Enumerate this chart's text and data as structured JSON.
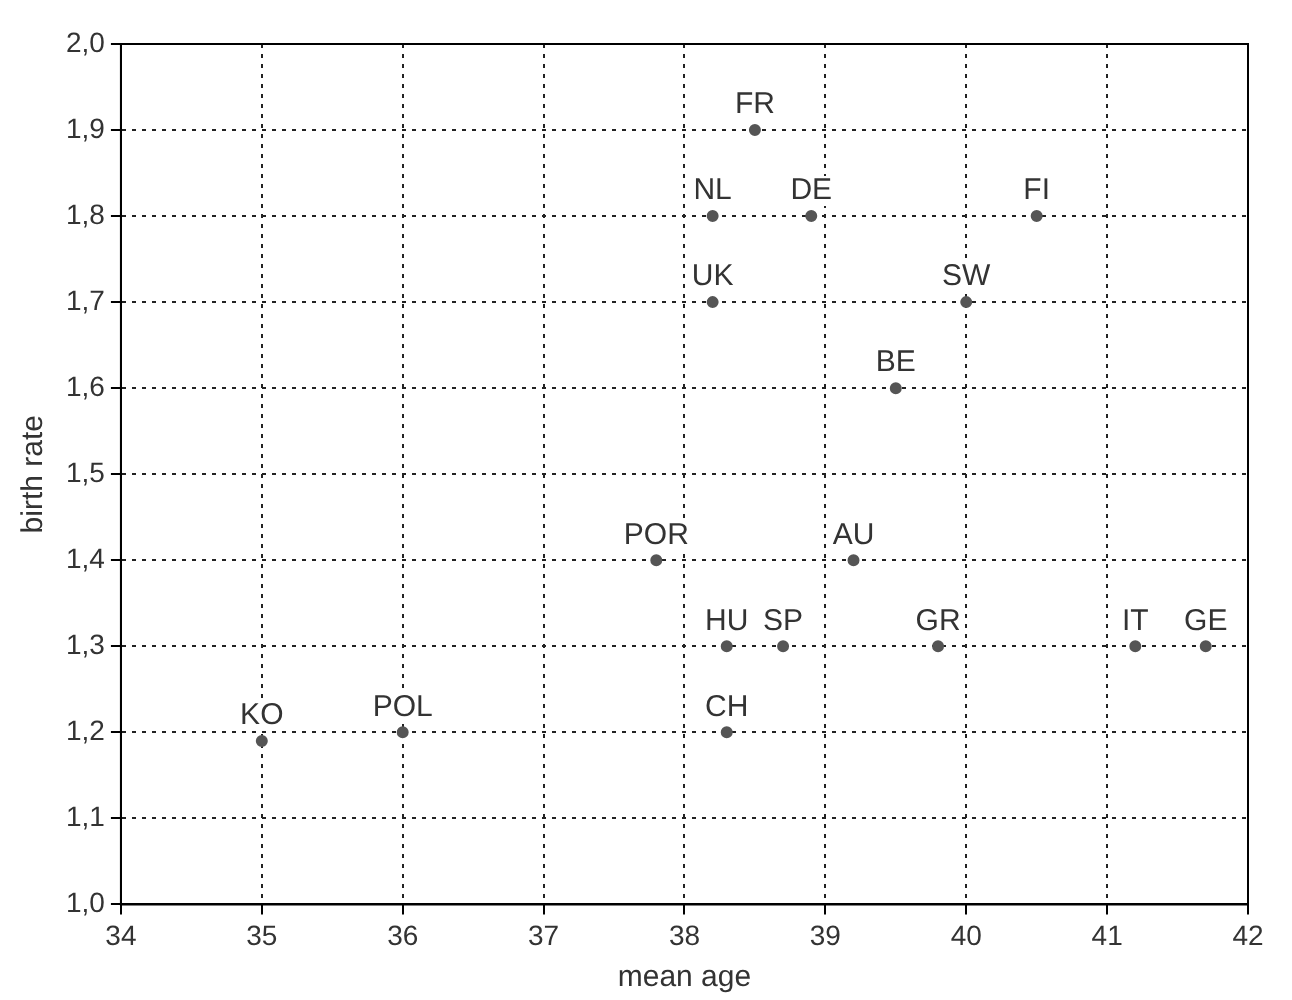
{
  "chart_data": {
    "type": "scatter",
    "xlabel": "mean age",
    "ylabel": "birth rate",
    "x": [
      38.5,
      38.2,
      38.9,
      40.5,
      38.2,
      40.0,
      39.5,
      37.8,
      39.2,
      38.3,
      38.7,
      39.8,
      41.2,
      41.7,
      35.0,
      36.0,
      38.3
    ],
    "values": [
      1.9,
      1.8,
      1.8,
      1.8,
      1.7,
      1.7,
      1.6,
      1.4,
      1.4,
      1.3,
      1.3,
      1.3,
      1.3,
      1.3,
      1.19,
      1.2,
      1.2
    ],
    "color": "#555555",
    "marker": "circle",
    "grid": true,
    "line_style": "dotted",
    "xlim": [
      34,
      42
    ],
    "xticks": [
      34,
      35,
      36,
      37,
      38,
      39,
      40,
      41,
      42
    ],
    "ylim": [
      1.0,
      2.0
    ],
    "yticks": [
      {
        "value": 1.0,
        "label": "1,0"
      },
      {
        "value": 1.1,
        "label": "1,1"
      },
      {
        "value": 1.2,
        "label": "1,2"
      },
      {
        "value": 1.3,
        "label": "1,3"
      },
      {
        "value": 1.4,
        "label": "1,4"
      },
      {
        "value": 1.5,
        "label": "1,5"
      },
      {
        "value": 1.6,
        "label": "1,6"
      },
      {
        "value": 1.7,
        "label": "1,7"
      },
      {
        "value": 1.8,
        "label": "1,8"
      },
      {
        "value": 1.9,
        "label": "1,9"
      },
      {
        "value": 2.0,
        "label": "2,0"
      }
    ],
    "annotations": [
      {
        "text": "FR",
        "x": 38.5,
        "y": 1.9
      },
      {
        "text": "NL",
        "x": 38.2,
        "y": 1.8
      },
      {
        "text": "DE",
        "x": 38.9,
        "y": 1.8
      },
      {
        "text": "FI",
        "x": 40.5,
        "y": 1.8
      },
      {
        "text": "UK",
        "x": 38.2,
        "y": 1.7
      },
      {
        "text": "SW",
        "x": 40.0,
        "y": 1.7
      },
      {
        "text": "BE",
        "x": 39.5,
        "y": 1.6
      },
      {
        "text": "POR",
        "x": 37.8,
        "y": 1.4
      },
      {
        "text": "AU",
        "x": 39.2,
        "y": 1.4
      },
      {
        "text": "HU",
        "x": 38.3,
        "y": 1.3
      },
      {
        "text": "SP",
        "x": 38.7,
        "y": 1.3
      },
      {
        "text": "GR",
        "x": 39.8,
        "y": 1.3
      },
      {
        "text": "IT",
        "x": 41.2,
        "y": 1.3
      },
      {
        "text": "GE",
        "x": 41.7,
        "y": 1.3
      },
      {
        "text": "KO",
        "x": 35.0,
        "y": 1.19
      },
      {
        "text": "POL",
        "x": 36.0,
        "y": 1.2
      },
      {
        "text": "CH",
        "x": 38.3,
        "y": 1.2
      }
    ]
  }
}
